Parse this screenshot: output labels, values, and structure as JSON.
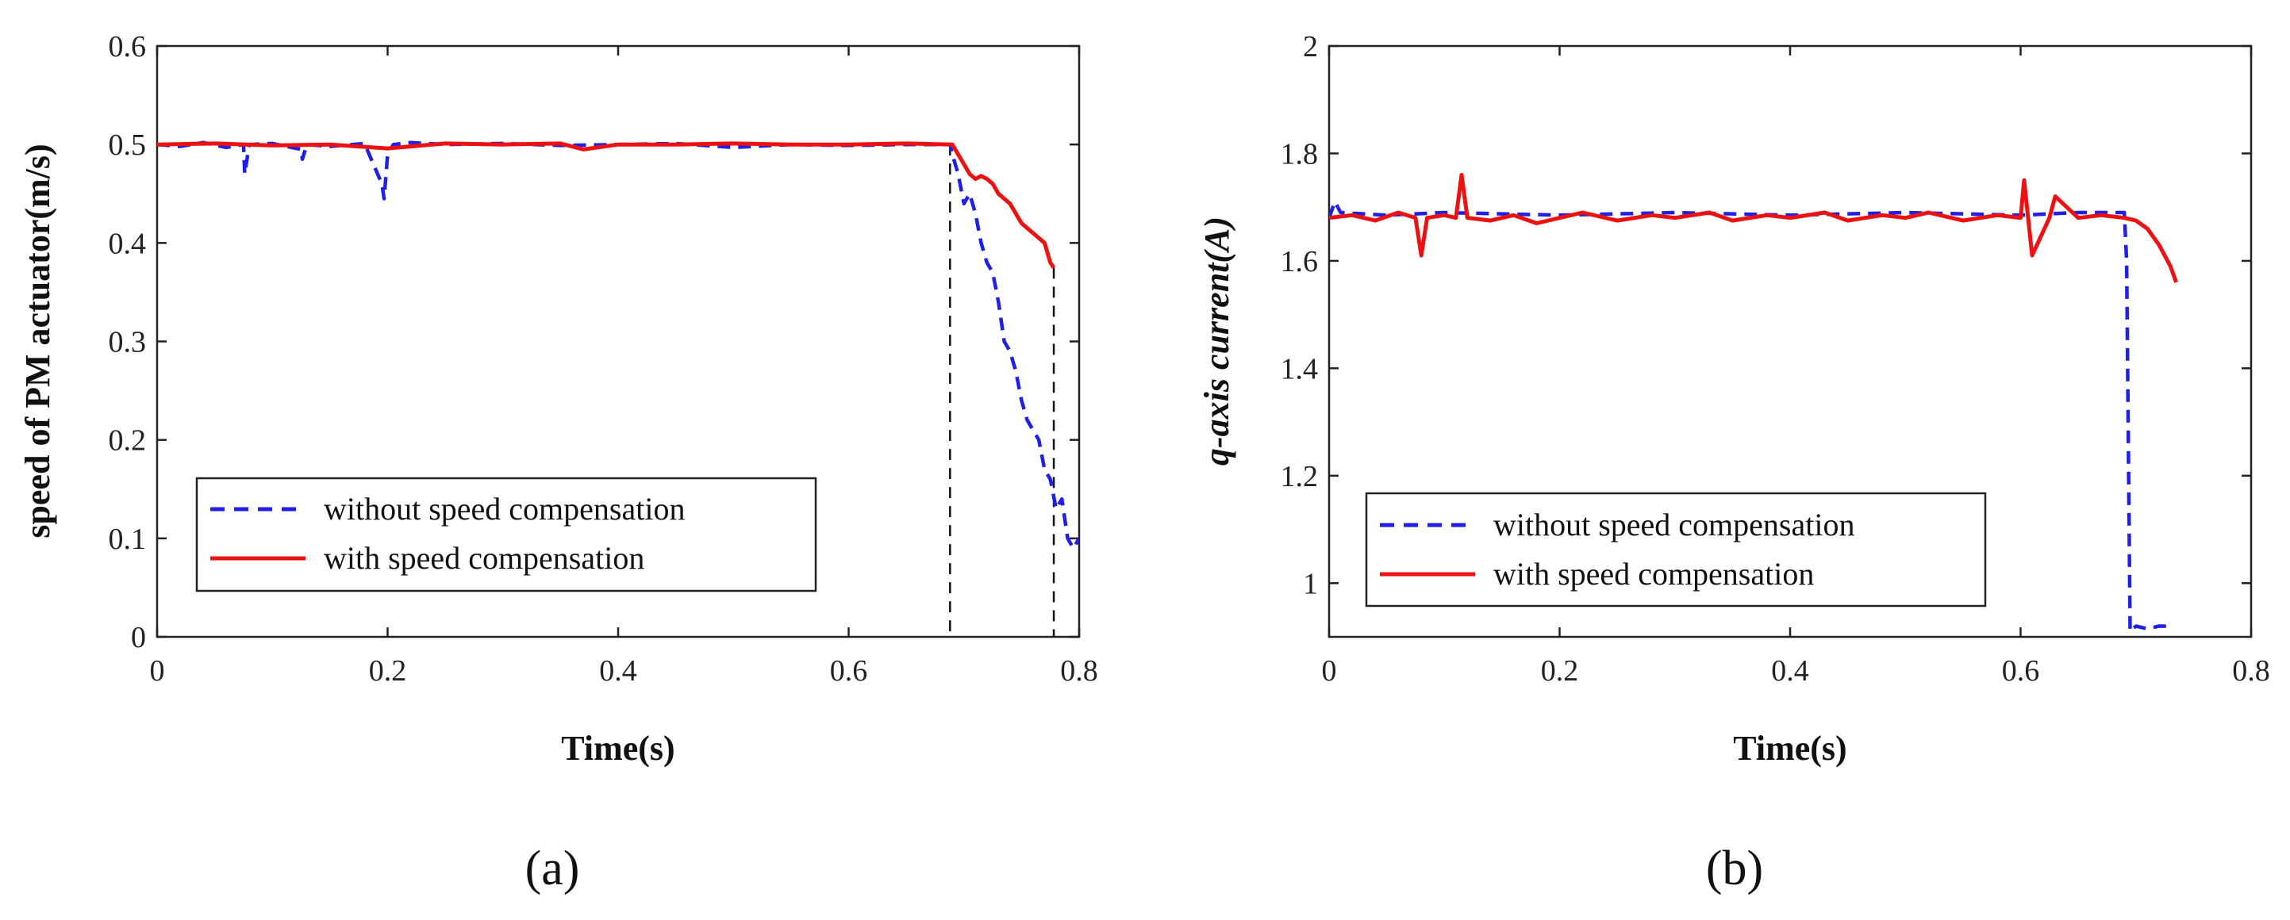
{
  "chart_data": [
    {
      "type": "line",
      "panel": "a",
      "xlabel": "Time(s)",
      "ylabel": "speed of PM actuator(m/s)",
      "xlim": [
        0,
        0.8
      ],
      "ylim": [
        0,
        0.6
      ],
      "xticks": [
        0,
        0.2,
        0.4,
        0.6,
        0.8
      ],
      "xtick_labels": [
        "0",
        "0.2",
        "0.4",
        "0.6",
        "0.8"
      ],
      "yticks": [
        0,
        0.1,
        0.2,
        0.3,
        0.4,
        0.5,
        0.6
      ],
      "ytick_labels": [
        "0",
        "0.1",
        "0.2",
        "0.3",
        "0.4",
        "0.5",
        "0.6"
      ],
      "legend_position": "bottom-left",
      "vlines": [
        0.688,
        0.778
      ],
      "series": [
        {
          "name": "without speed compensation",
          "color": "#1f1fe6",
          "style": "dashed",
          "x": [
            0,
            0.02,
            0.04,
            0.06,
            0.075,
            0.076,
            0.08,
            0.1,
            0.125,
            0.126,
            0.13,
            0.15,
            0.18,
            0.195,
            0.197,
            0.2,
            0.205,
            0.22,
            0.25,
            0.3,
            0.35,
            0.4,
            0.45,
            0.5,
            0.55,
            0.6,
            0.65,
            0.688,
            0.69,
            0.695,
            0.7,
            0.705,
            0.71,
            0.715,
            0.72,
            0.725,
            0.73,
            0.735,
            0.74,
            0.745,
            0.75,
            0.755,
            0.76,
            0.765,
            0.77,
            0.775,
            0.78,
            0.785,
            0.79,
            0.795,
            0.8
          ],
          "values": [
            0.5,
            0.498,
            0.502,
            0.497,
            0.5,
            0.47,
            0.5,
            0.501,
            0.495,
            0.485,
            0.5,
            0.498,
            0.501,
            0.46,
            0.445,
            0.49,
            0.5,
            0.502,
            0.5,
            0.501,
            0.499,
            0.5,
            0.501,
            0.497,
            0.5,
            0.499,
            0.5,
            0.5,
            0.49,
            0.47,
            0.44,
            0.45,
            0.43,
            0.4,
            0.38,
            0.37,
            0.34,
            0.3,
            0.29,
            0.27,
            0.24,
            0.22,
            0.21,
            0.2,
            0.17,
            0.16,
            0.13,
            0.14,
            0.1,
            0.09,
            0.1
          ]
        },
        {
          "name": "with speed compensation",
          "color": "#ee1111",
          "style": "solid",
          "x": [
            0,
            0.05,
            0.1,
            0.15,
            0.2,
            0.25,
            0.3,
            0.35,
            0.37,
            0.4,
            0.45,
            0.5,
            0.55,
            0.6,
            0.65,
            0.69,
            0.695,
            0.7,
            0.705,
            0.71,
            0.715,
            0.72,
            0.725,
            0.73,
            0.74,
            0.75,
            0.755,
            0.76,
            0.77,
            0.775,
            0.778
          ],
          "values": [
            0.5,
            0.501,
            0.499,
            0.5,
            0.496,
            0.501,
            0.5,
            0.501,
            0.495,
            0.5,
            0.5,
            0.501,
            0.5,
            0.5,
            0.501,
            0.5,
            0.49,
            0.48,
            0.47,
            0.465,
            0.468,
            0.465,
            0.46,
            0.45,
            0.44,
            0.42,
            0.415,
            0.41,
            0.4,
            0.38,
            0.375
          ]
        }
      ]
    },
    {
      "type": "line",
      "panel": "b",
      "xlabel": "Time(s)",
      "ylabel": "q-axis current(A)",
      "xlim": [
        0,
        0.8
      ],
      "ylim": [
        0.9,
        2
      ],
      "xticks": [
        0,
        0.2,
        0.4,
        0.6,
        0.8
      ],
      "xtick_labels": [
        "0",
        "0.2",
        "0.4",
        "0.6",
        "0.8"
      ],
      "yticks": [
        1,
        1.2,
        1.4,
        1.6,
        1.8,
        2
      ],
      "ytick_labels": [
        "1",
        "1.2",
        "1.4",
        "1.6",
        "1.8",
        "2"
      ],
      "legend_position": "bottom-left",
      "series": [
        {
          "name": "without speed compensation",
          "color": "#1f1fe6",
          "style": "dashed",
          "x": [
            0,
            0.005,
            0.01,
            0.05,
            0.1,
            0.2,
            0.3,
            0.4,
            0.5,
            0.6,
            0.65,
            0.69,
            0.692,
            0.695,
            0.7,
            0.71,
            0.72,
            0.73
          ],
          "values": [
            1.68,
            1.71,
            1.69,
            1.685,
            1.69,
            1.685,
            1.69,
            1.685,
            1.69,
            1.685,
            1.69,
            1.69,
            1.6,
            0.91,
            0.92,
            0.915,
            0.92,
            0.92
          ]
        },
        {
          "name": "with speed compensation",
          "color": "#ee1111",
          "style": "solid",
          "x": [
            0,
            0.02,
            0.04,
            0.06,
            0.075,
            0.08,
            0.085,
            0.1,
            0.11,
            0.115,
            0.12,
            0.14,
            0.16,
            0.18,
            0.2,
            0.22,
            0.25,
            0.28,
            0.3,
            0.33,
            0.35,
            0.38,
            0.4,
            0.43,
            0.45,
            0.48,
            0.5,
            0.52,
            0.55,
            0.58,
            0.6,
            0.603,
            0.61,
            0.625,
            0.63,
            0.65,
            0.67,
            0.69,
            0.7,
            0.71,
            0.72,
            0.73,
            0.735
          ],
          "values": [
            1.68,
            1.685,
            1.675,
            1.69,
            1.68,
            1.61,
            1.68,
            1.685,
            1.68,
            1.76,
            1.68,
            1.675,
            1.685,
            1.67,
            1.68,
            1.69,
            1.675,
            1.685,
            1.68,
            1.69,
            1.675,
            1.685,
            1.68,
            1.69,
            1.675,
            1.685,
            1.68,
            1.69,
            1.675,
            1.685,
            1.68,
            1.75,
            1.61,
            1.68,
            1.72,
            1.68,
            1.685,
            1.68,
            1.675,
            1.66,
            1.63,
            1.59,
            1.56
          ]
        }
      ]
    }
  ],
  "panels": {
    "a": {
      "label": "(a)"
    },
    "b": {
      "label": "(b)"
    }
  }
}
